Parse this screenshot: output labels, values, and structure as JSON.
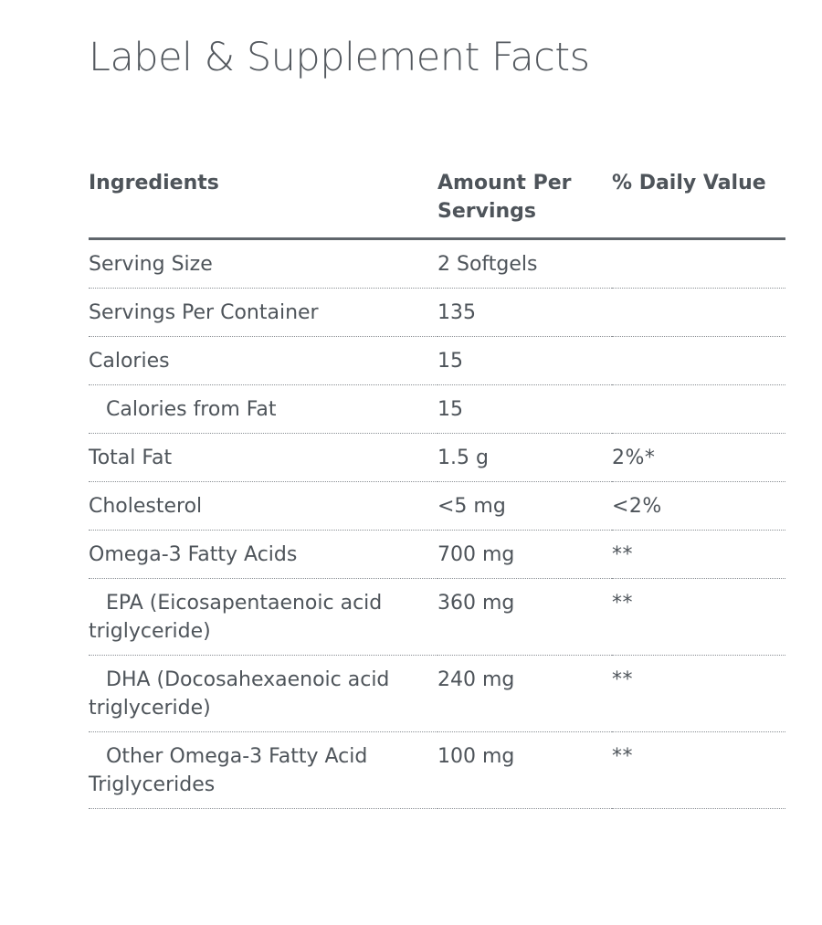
{
  "title": "Label & Supplement Facts",
  "table": {
    "headers": {
      "ingredients": "Ingredients",
      "amount": "Amount Per Servings",
      "daily": "% Daily Value"
    },
    "rows": [
      {
        "name": "Serving Size",
        "amount": "2 Softgels",
        "daily": "",
        "indent": false
      },
      {
        "name": "Servings Per Container",
        "amount": "135",
        "daily": "",
        "indent": false
      },
      {
        "name": "Calories",
        "amount": "15",
        "daily": "",
        "indent": false
      },
      {
        "name": "Calories from Fat",
        "amount": "15",
        "daily": "",
        "indent": true
      },
      {
        "name": "Total Fat",
        "amount": "1.5 g",
        "daily": "2%*",
        "indent": false
      },
      {
        "name": "Cholesterol",
        "amount": "<5 mg",
        "daily": "<2%",
        "indent": false
      },
      {
        "name": "Omega-3 Fatty Acids",
        "amount": "700 mg",
        "daily": "**",
        "indent": false
      },
      {
        "name": "EPA (Eicosapentaenoic acid triglyceride)",
        "amount": "360 mg",
        "daily": "**",
        "indent": true
      },
      {
        "name": "DHA (Docosahexaenoic acid triglyceride)",
        "amount": "240 mg",
        "daily": "**",
        "indent": true
      },
      {
        "name": "Other Omega-3 Fatty Acid Triglycerides",
        "amount": "100 mg",
        "daily": "**",
        "indent": true
      }
    ]
  }
}
